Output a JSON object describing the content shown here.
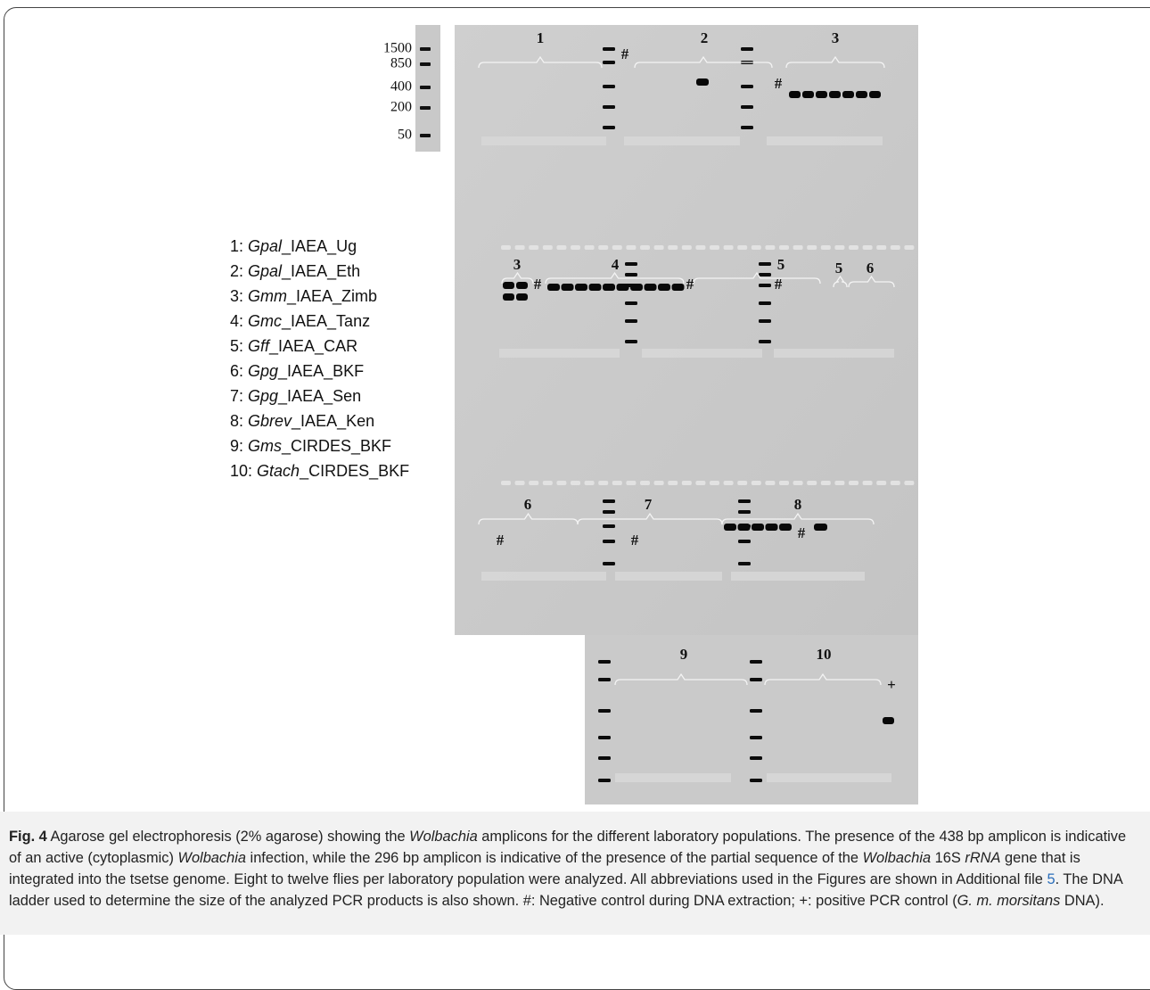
{
  "ladder": [
    "1500",
    "850",
    "400",
    "200",
    "50"
  ],
  "gel_labels": [
    "1",
    "#",
    "2",
    "3",
    "#",
    "3",
    "#",
    "4",
    "#",
    "5",
    "#",
    "5",
    "6",
    "6",
    "#",
    "#",
    "7",
    "8",
    "#",
    "9",
    "10",
    "+"
  ],
  "legend": [
    {
      "num": "1: ",
      "species": "Gpal",
      "suffix": "_IAEA_Ug"
    },
    {
      "num": "2: ",
      "species": "Gpal",
      "suffix": "_IAEA_Eth"
    },
    {
      "num": "3: ",
      "species": "Gmm",
      "suffix": "_IAEA_Zimb"
    },
    {
      "num": "4: ",
      "species": "Gmc",
      "suffix": "_IAEA_Tanz"
    },
    {
      "num": "5: ",
      "species": "Gff",
      "suffix": "_IAEA_CAR"
    },
    {
      "num": "6: ",
      "species": "Gpg",
      "suffix": "_IAEA_BKF"
    },
    {
      "num": "7: ",
      "species": "Gpg",
      "suffix": "_IAEA_Sen"
    },
    {
      "num": "8: ",
      "species": "Gbrev",
      "suffix": "_IAEA_Ken"
    },
    {
      "num": "9: ",
      "species": "Gms",
      "suffix": "_CIRDES_BKF"
    },
    {
      "num": "10: ",
      "species": "Gtach",
      "suffix": "_CIRDES_BKF"
    }
  ],
  "caption": {
    "label": "Fig. 4",
    "segments": [
      " Agarose gel electrophoresis (2% agarose) showing the ",
      "Wolbachia",
      " amplicons for the different laboratory populations. The presence of the 438 bp amplicon is indicative of an active (cytoplasmic) ",
      "Wolbachia",
      " infection, while the 296 bp amplicon is indicative of the presence of the partial sequence of the ",
      "Wolbachia",
      " 16S ",
      "rRNA",
      " gene that is integrated into the tsetse genome. Eight to twelve flies per laboratory population were analyzed. All abbreviations used in the Figures are shown in Additional file ",
      "5",
      ". The DNA ladder used to determine the size of the analyzed PCR products is also shown. #: Negative control during DNA extraction; +: positive PCR control (",
      "G. m. morsitans",
      " DNA)."
    ]
  }
}
